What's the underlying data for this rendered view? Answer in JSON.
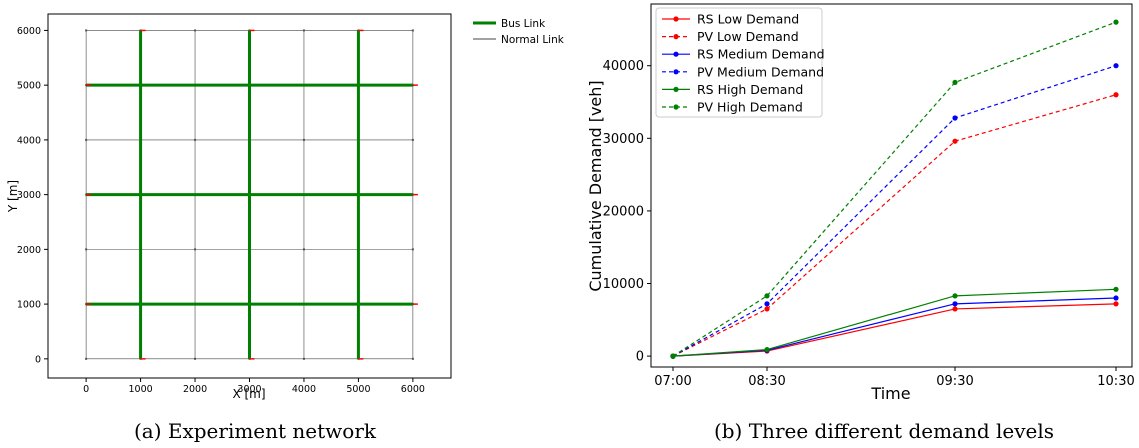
{
  "captions": {
    "a": "(a) Experiment network",
    "b": "(b) Three different demand levels"
  },
  "chart_data": [
    {
      "type": "network",
      "xlabel": "X [m]",
      "ylabel": "Y [m]",
      "xlim": [
        -700,
        6700
      ],
      "ylim": [
        -350,
        6300
      ],
      "xticks": [
        0,
        1000,
        2000,
        3000,
        4000,
        5000,
        6000
      ],
      "yticks": [
        0,
        1000,
        2000,
        3000,
        4000,
        5000,
        6000
      ],
      "legend_position": "outside-top-right",
      "legend": [
        {
          "label": "Bus Link",
          "color": "#008000"
        },
        {
          "label": "Normal Link",
          "color": "#444444"
        }
      ],
      "grid_nodes": [
        0,
        1000,
        2000,
        3000,
        4000,
        5000,
        6000
      ],
      "bus_lines_x": [
        1000,
        3000,
        5000
      ],
      "bus_lines_y": [
        1000,
        3000,
        5000
      ],
      "bus_color": "#008000",
      "normal_color": "#444444",
      "terminal_color": "#ff0000"
    },
    {
      "type": "line",
      "xlabel": "Time",
      "ylabel": "Cumulative Demand [veh]",
      "categories": [
        "07:00",
        "08:30",
        "09:30",
        "10:30"
      ],
      "ylim": [
        -1500,
        48500
      ],
      "yticks": [
        0,
        10000,
        20000,
        30000,
        40000
      ],
      "grid": false,
      "legend_position": "top-left",
      "series": [
        {
          "name": "RS Low Demand",
          "color": "#ff0000",
          "dashed": false,
          "values": [
            0,
            700,
            6500,
            7200
          ]
        },
        {
          "name": "PV Low Demand",
          "color": "#ff0000",
          "dashed": true,
          "values": [
            0,
            6500,
            29600,
            36000
          ]
        },
        {
          "name": "RS Medium Demand",
          "color": "#0000ff",
          "dashed": false,
          "values": [
            0,
            800,
            7200,
            8000
          ]
        },
        {
          "name": "PV Medium Demand",
          "color": "#0000ff",
          "dashed": true,
          "values": [
            0,
            7200,
            32800,
            40000
          ]
        },
        {
          "name": "RS High Demand",
          "color": "#008000",
          "dashed": false,
          "values": [
            0,
            900,
            8300,
            9200
          ]
        },
        {
          "name": "PV High Demand",
          "color": "#008000",
          "dashed": true,
          "values": [
            0,
            8300,
            37700,
            46000
          ]
        }
      ]
    }
  ]
}
